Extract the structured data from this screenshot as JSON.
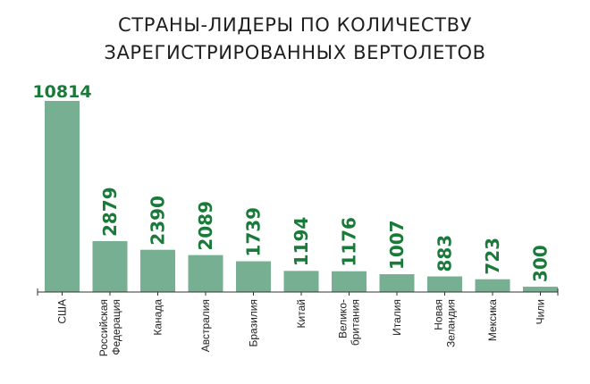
{
  "title_line1": "СТРАНЫ-ЛИДЕРЫ ПО КОЛИЧЕСТВУ",
  "title_line2": "ЗАРЕГИСТРИРОВАННЫХ ВЕРТОЛЕТОВ",
  "colors": {
    "bar": "#76af92",
    "value_label": "#1a7a3a",
    "axis": "#333333"
  },
  "chart_data": {
    "type": "bar",
    "title": "СТРАНЫ-ЛИДЕРЫ ПО КОЛИЧЕСТВУ ЗАРЕГИСТРИРОВАННЫХ ВЕРТОЛЕТОВ",
    "categories": [
      [
        "США"
      ],
      [
        "Российская",
        "Федерация"
      ],
      [
        "Канада"
      ],
      [
        "Австралия"
      ],
      [
        "Бразилия"
      ],
      [
        "Китай"
      ],
      [
        "Велико-",
        "британия"
      ],
      [
        "Италия"
      ],
      [
        "Новая",
        "Зеландия"
      ],
      [
        "Мексика"
      ],
      [
        "Чили"
      ]
    ],
    "values": [
      10814,
      2879,
      2390,
      2089,
      1739,
      1194,
      1176,
      1007,
      883,
      723,
      300
    ],
    "xlabel": "",
    "ylabel": "",
    "ylim": [
      0,
      10814
    ],
    "grid": false,
    "legend": "none"
  }
}
